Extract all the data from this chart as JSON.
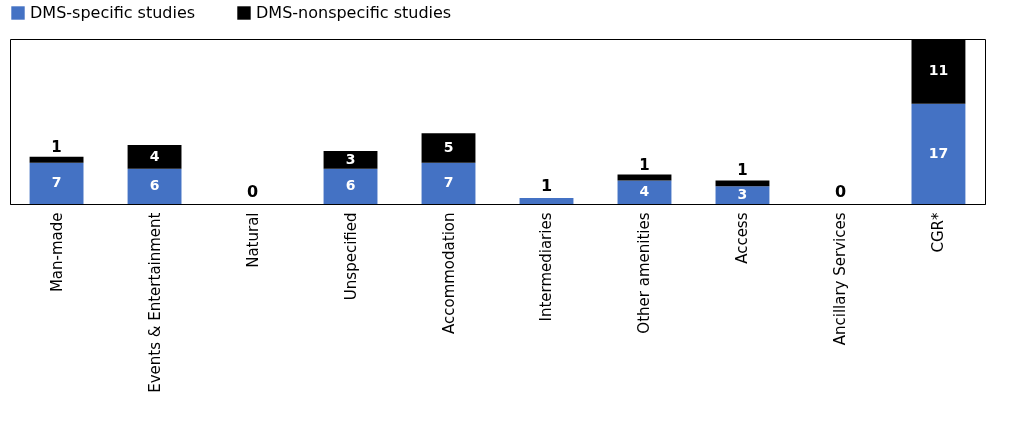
{
  "chart_data": {
    "type": "bar",
    "stacked": true,
    "legend": "top",
    "grid": false,
    "data_labels": true,
    "categories": [
      "Man-made",
      "Events & Entertainment",
      "Natural",
      "Unspecified",
      "Accommodation",
      "Intermediaries",
      "Other amenities",
      "Access",
      "Ancillary Services",
      "CGR*"
    ],
    "series": [
      {
        "name": "DMS-specific studies",
        "color": "#4472c4",
        "values": [
          7,
          6,
          0,
          6,
          7,
          1,
          4,
          3,
          0,
          17
        ],
        "value_labels": [
          "7",
          "6",
          null,
          "6",
          "7",
          null,
          "4",
          "3",
          null,
          "17"
        ]
      },
      {
        "name": "DMS-nonspecific studies",
        "color": "#000000",
        "values": [
          1,
          4,
          0,
          3,
          5,
          0,
          1,
          1,
          0,
          11
        ],
        "value_labels": [
          "1",
          "4",
          null,
          "3",
          "5",
          null,
          "1",
          "1",
          null,
          "11"
        ]
      }
    ],
    "totals": [
      null,
      null,
      "0",
      null,
      null,
      "1",
      null,
      null,
      "0",
      null
    ]
  }
}
